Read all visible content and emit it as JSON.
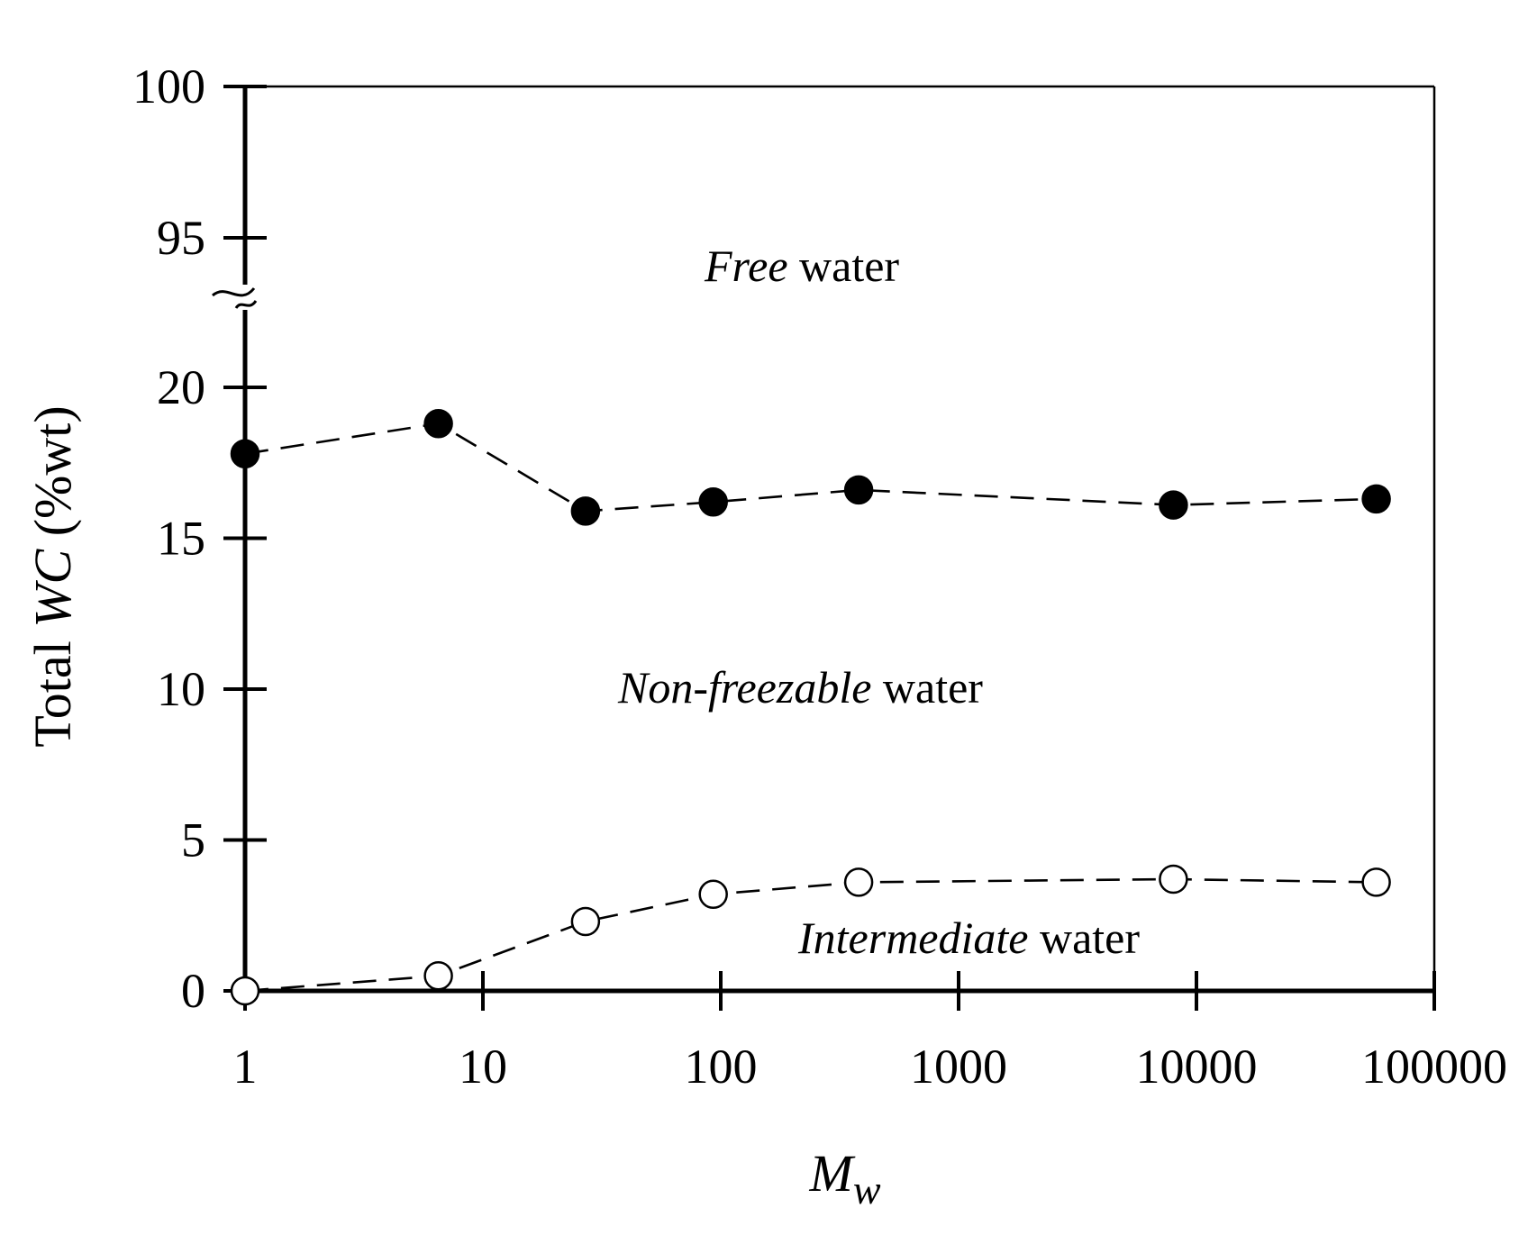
{
  "chart_data": {
    "type": "scatter",
    "title": "",
    "xlabel_main": "M",
    "xlabel_sub": "w",
    "ylabel_prefix": "Total ",
    "ylabel_italic": "WC",
    "ylabel_suffix": " (%wt)",
    "xscale": "log",
    "xlim": [
      1,
      100000
    ],
    "x_ticks": [
      1,
      10,
      100,
      1000,
      10000,
      100000
    ],
    "x_tick_labels": [
      "1",
      "10",
      "100",
      "1000",
      "10000",
      "100000"
    ],
    "y_axis_break": true,
    "y_segments": [
      {
        "range": [
          0,
          22
        ],
        "ticks": [
          0,
          5,
          10,
          15,
          20
        ],
        "tick_labels": [
          "0",
          "5",
          "10",
          "15",
          "20"
        ]
      },
      {
        "range": [
          92.5,
          100
        ],
        "ticks": [
          95,
          100
        ],
        "tick_labels": [
          "95",
          "100"
        ]
      }
    ],
    "grid": false,
    "series": [
      {
        "name": "Non-freezable water",
        "marker": "filled-circle",
        "line": "dashed",
        "x": [
          1,
          6.5,
          27,
          93,
          380,
          8000,
          57000
        ],
        "y": [
          17.8,
          18.8,
          15.9,
          16.2,
          16.6,
          16.1,
          16.3
        ]
      },
      {
        "name": "Intermediate water",
        "marker": "open-circle",
        "line": "dashed",
        "x": [
          1,
          6.5,
          27,
          93,
          380,
          8000,
          57000
        ],
        "y": [
          0.0,
          0.5,
          2.3,
          3.2,
          3.6,
          3.7,
          3.6
        ]
      }
    ],
    "annotations": [
      {
        "italic": "Free",
        "rest": " water"
      },
      {
        "italic": "Non-freezable",
        "rest": " water"
      },
      {
        "italic": "Intermediate",
        "rest": " water"
      }
    ]
  }
}
